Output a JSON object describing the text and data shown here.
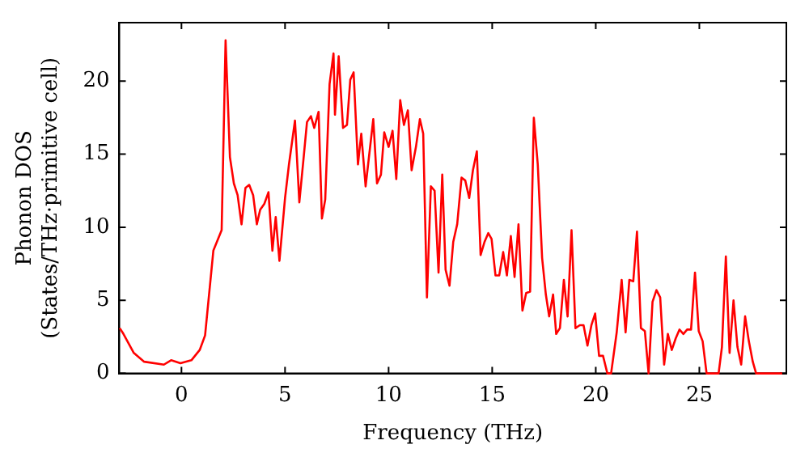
{
  "chart_data": {
    "type": "line",
    "xlabel": "Frequency (THz)",
    "ylabel": "Phonon DOS\n(States/THz·primitive cell)",
    "xlim": [
      -3,
      29.2
    ],
    "ylim": [
      0,
      24
    ],
    "xticks": [
      0,
      5,
      10,
      15,
      20,
      25
    ],
    "yticks": [
      0,
      5,
      10,
      15,
      20
    ],
    "grid": false,
    "legend": false,
    "marker": "none",
    "line_style": "solid",
    "series": [
      {
        "color": "#ff0000",
        "x": [
          -2.98,
          -2.8,
          -2.3,
          -1.8,
          -0.85,
          -0.5,
          -0.05,
          0.48,
          0.88,
          1.14,
          1.54,
          1.94,
          2.13,
          2.34,
          2.53,
          2.71,
          2.9,
          3.09,
          3.27,
          3.46,
          3.64,
          3.8,
          4.0,
          4.2,
          4.39,
          4.55,
          4.73,
          5.0,
          5.19,
          5.48,
          5.69,
          5.88,
          6.06,
          6.25,
          6.41,
          6.62,
          6.78,
          6.94,
          7.15,
          7.34,
          7.41,
          7.59,
          7.8,
          7.99,
          8.15,
          8.31,
          8.52,
          8.68,
          8.89,
          9.26,
          9.44,
          9.63,
          9.79,
          10.0,
          10.19,
          10.37,
          10.56,
          10.74,
          10.93,
          11.11,
          11.32,
          11.51,
          11.67,
          11.85,
          12.04,
          12.22,
          12.41,
          12.59,
          12.75,
          12.94,
          13.12,
          13.31,
          13.52,
          13.7,
          13.89,
          14.07,
          14.26,
          14.44,
          14.63,
          14.81,
          14.97,
          15.16,
          15.34,
          15.53,
          15.71,
          15.9,
          16.08,
          16.27,
          16.46,
          16.64,
          16.83,
          17.01,
          17.2,
          17.41,
          17.59,
          17.75,
          17.94,
          18.09,
          18.27,
          18.46,
          18.64,
          18.83,
          19.02,
          19.23,
          19.41,
          19.6,
          19.79,
          19.97,
          20.16,
          20.35,
          20.56,
          20.74,
          21.01,
          21.25,
          21.44,
          21.62,
          21.81,
          21.99,
          22.18,
          22.37,
          22.55,
          22.74,
          22.93,
          23.11,
          23.3,
          23.48,
          23.67,
          23.86,
          24.04,
          24.23,
          24.41,
          24.6,
          24.79,
          24.97,
          25.16,
          25.35,
          25.93,
          26.09,
          26.28,
          26.46,
          26.65,
          26.84,
          27.02,
          27.21,
          27.39,
          27.58,
          27.74,
          29.0
        ],
        "values": [
          3.1,
          2.7,
          1.4,
          0.8,
          0.6,
          0.9,
          0.7,
          0.9,
          1.6,
          2.6,
          8.4,
          9.8,
          22.8,
          14.8,
          13.0,
          12.2,
          10.2,
          12.7,
          12.9,
          12.2,
          10.2,
          11.2,
          11.6,
          12.4,
          8.4,
          10.7,
          7.7,
          12.0,
          14.3,
          17.3,
          11.7,
          14.5,
          17.2,
          17.6,
          16.8,
          17.9,
          10.6,
          11.9,
          19.8,
          21.9,
          17.7,
          21.7,
          16.8,
          17.0,
          20.1,
          20.6,
          14.3,
          16.4,
          12.8,
          17.4,
          13.0,
          13.6,
          16.5,
          15.5,
          16.6,
          13.3,
          18.7,
          17.0,
          18.0,
          13.9,
          15.5,
          17.4,
          16.4,
          5.2,
          12.8,
          12.5,
          6.9,
          13.6,
          7.1,
          6.0,
          9.0,
          10.2,
          13.4,
          13.2,
          12.0,
          13.9,
          15.2,
          8.1,
          9.0,
          9.6,
          9.2,
          6.7,
          6.7,
          8.3,
          6.7,
          9.4,
          6.6,
          10.2,
          4.3,
          5.5,
          5.6,
          17.5,
          14.3,
          7.9,
          5.4,
          3.9,
          5.4,
          2.7,
          3.1,
          6.4,
          3.9,
          9.8,
          3.1,
          3.3,
          3.3,
          1.9,
          3.3,
          4.1,
          1.2,
          1.2,
          0,
          0,
          2.8,
          6.4,
          2.8,
          6.4,
          6.3,
          9.7,
          3.1,
          2.9,
          0,
          4.9,
          5.7,
          5.2,
          0.6,
          2.7,
          1.6,
          2.4,
          3.0,
          2.7,
          3.0,
          3.0,
          6.9,
          2.9,
          2.2,
          0,
          0,
          1.8,
          8.0,
          1.4,
          5.0,
          1.8,
          0.6,
          3.9,
          2.2,
          0.8,
          0,
          0
        ]
      }
    ]
  }
}
